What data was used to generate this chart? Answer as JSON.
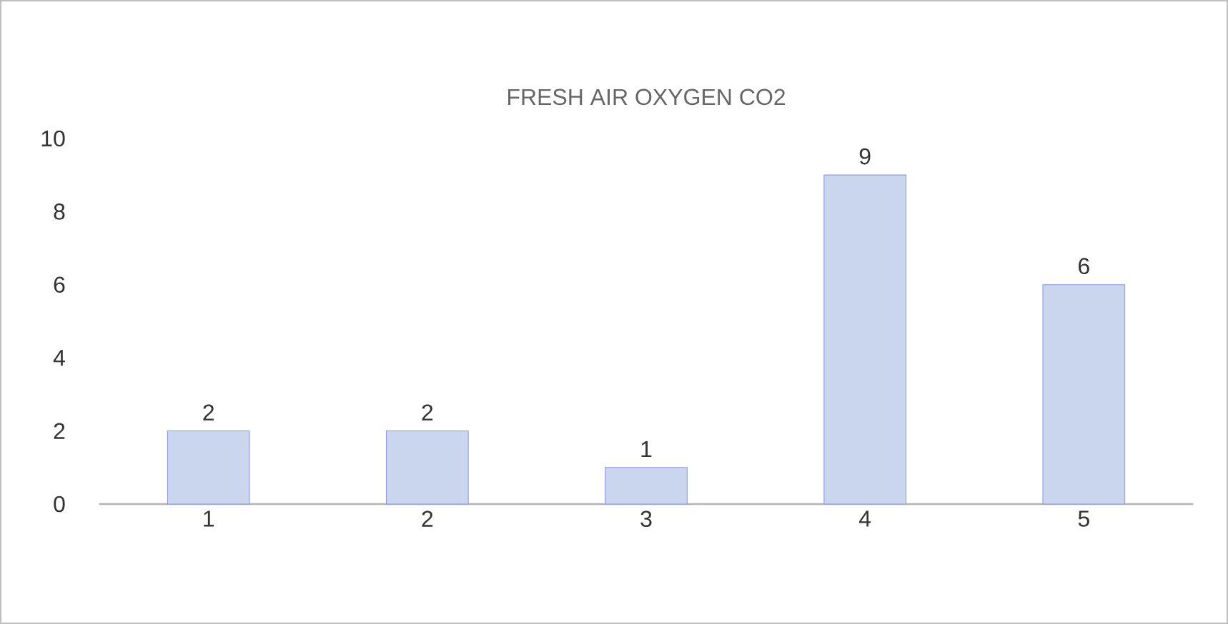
{
  "chart_data": {
    "type": "bar",
    "title": "FRESH AIR OXYGEN CO2",
    "categories": [
      "1",
      "2",
      "3",
      "4",
      "5"
    ],
    "values": [
      2,
      2,
      1,
      9,
      6
    ],
    "color": "#c9d6ee",
    "ylim": [
      0,
      10
    ],
    "yticks": [
      0,
      2,
      4,
      6,
      8,
      10
    ],
    "data_labels": true
  }
}
